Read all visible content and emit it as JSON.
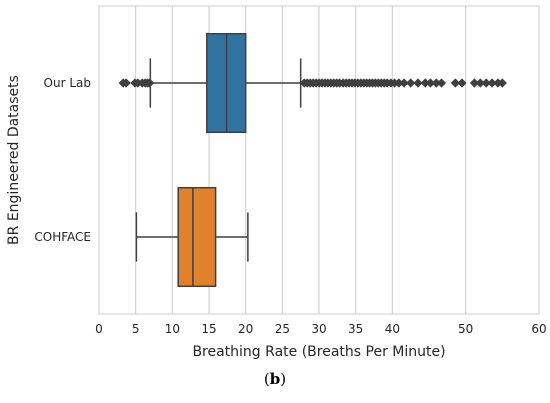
{
  "caption": {
    "open": "(",
    "letter": "b",
    "close": ")"
  },
  "chart_data": {
    "type": "box",
    "orientation": "horizontal",
    "xlabel": "Breathing Rate (Breaths Per Minute)",
    "ylabel": "BR Engineered Datasets",
    "xlim": [
      0,
      60
    ],
    "xticks": [
      0,
      5,
      10,
      15,
      20,
      25,
      30,
      35,
      40,
      50,
      60
    ],
    "grid": "vertical",
    "categories": [
      "Our Lab",
      "COHFACE"
    ],
    "boxes": [
      {
        "name": "Our Lab",
        "color": "#3274a1",
        "whisker_low": 7,
        "q1": 14.7,
        "median": 17.4,
        "q3": 20.0,
        "whisker_high": 27.5,
        "outliers": [
          3.3,
          3.7,
          4.9,
          5.3,
          5.9,
          6.3,
          6.6,
          6.9,
          28.0,
          28.4,
          28.8,
          29.2,
          29.6,
          30.0,
          30.4,
          30.8,
          31.2,
          31.6,
          32.0,
          32.4,
          32.8,
          33.3,
          33.7,
          34.1,
          34.5,
          34.9,
          35.3,
          35.7,
          36.1,
          36.5,
          36.9,
          37.3,
          37.7,
          38.1,
          38.5,
          38.9,
          39.3,
          39.8,
          40.3,
          40.9,
          41.6,
          42.5,
          43.5,
          44.5,
          45.2,
          46.0,
          46.7,
          48.6,
          49.5,
          51.2,
          52.0,
          52.8,
          53.6,
          54.4,
          55.0
        ]
      },
      {
        "name": "COHFACE",
        "color": "#e1812c",
        "whisker_low": 5.1,
        "q1": 10.8,
        "median": 12.8,
        "q3": 15.9,
        "whisker_high": 20.3,
        "outliers": []
      }
    ]
  }
}
